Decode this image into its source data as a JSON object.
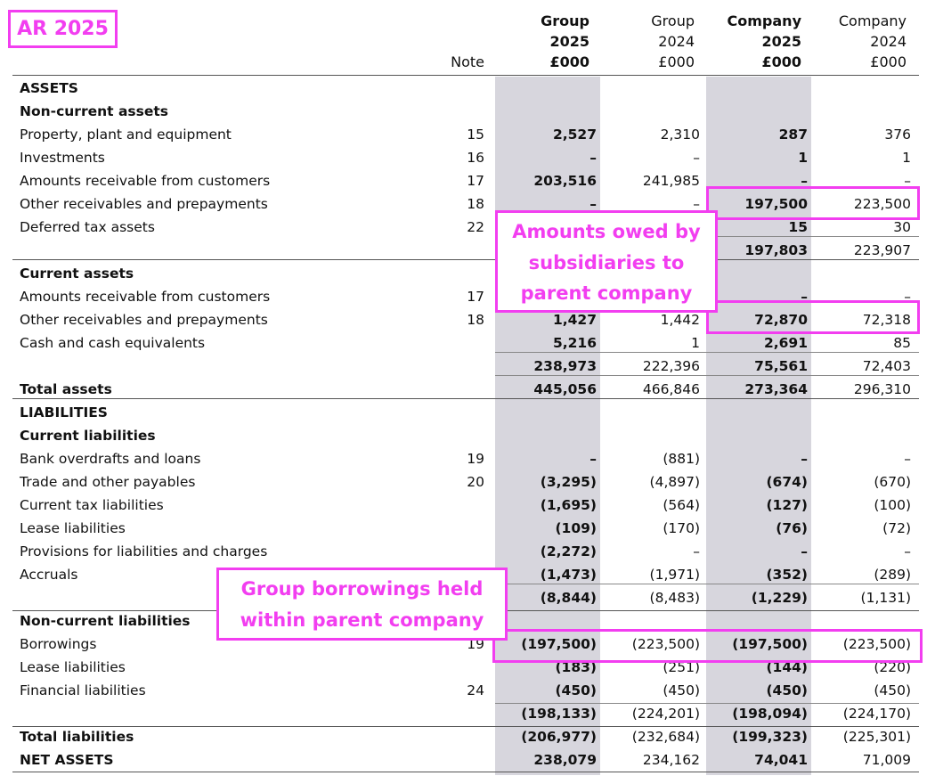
{
  "tag": "AR 2025",
  "columns": {
    "note": "Note",
    "group_2025": [
      "Group",
      "2025",
      "£000"
    ],
    "group_2024": [
      "Group",
      "2024",
      "£000"
    ],
    "company_2025": [
      "Company",
      "2025",
      "£000"
    ],
    "company_2024": [
      "Company",
      "2024",
      "£000"
    ]
  },
  "rows": [
    {
      "label": "ASSETS",
      "bold": true
    },
    {
      "label": "Non-current assets",
      "bold": true
    },
    {
      "label": "Property, plant and equipment",
      "note": "15",
      "v": [
        "2,527",
        "2,310",
        "287",
        "376"
      ]
    },
    {
      "label": "Investments",
      "note": "16",
      "v": [
        "–",
        "–",
        "1",
        "1"
      ]
    },
    {
      "label": "Amounts receivable from customers",
      "note": "17",
      "v": [
        "203,516",
        "241,985",
        "–",
        "–"
      ]
    },
    {
      "label": "Other receivables and prepayments",
      "note": "18",
      "v": [
        "–",
        "–",
        "197,500",
        "223,500"
      ]
    },
    {
      "label": "Deferred tax assets",
      "note": "22",
      "v": [
        "",
        "",
        "15",
        "30"
      ]
    },
    {
      "label": "",
      "v": [
        "",
        "",
        "197,803",
        "223,907"
      ]
    },
    {
      "label": "Current assets",
      "bold": true
    },
    {
      "label": "Amounts receivable from customers",
      "note": "17",
      "v": [
        "",
        "",
        "–",
        "–"
      ]
    },
    {
      "label": "Other receivables and prepayments",
      "note": "18",
      "v": [
        "1,427",
        "1,442",
        "72,870",
        "72,318"
      ]
    },
    {
      "label": "Cash and cash equivalents",
      "v": [
        "5,216",
        "1",
        "2,691",
        "85"
      ]
    },
    {
      "label": "",
      "v": [
        "238,973",
        "222,396",
        "75,561",
        "72,403"
      ]
    },
    {
      "label": "Total assets",
      "bold": true,
      "v": [
        "445,056",
        "466,846",
        "273,364",
        "296,310"
      ]
    },
    {
      "label": "LIABILITIES",
      "bold": true
    },
    {
      "label": "Current liabilities",
      "bold": true
    },
    {
      "label": "Bank overdrafts and loans",
      "note": "19",
      "v": [
        "–",
        "(881)",
        "–",
        "–"
      ]
    },
    {
      "label": "Trade and other payables",
      "note": "20",
      "v": [
        "(3,295)",
        "(4,897)",
        "(674)",
        "(670)"
      ]
    },
    {
      "label": "Current tax liabilities",
      "v": [
        "(1,695)",
        "(564)",
        "(127)",
        "(100)"
      ]
    },
    {
      "label": "Lease liabilities",
      "v": [
        "(109)",
        "(170)",
        "(76)",
        "(72)"
      ]
    },
    {
      "label": "Provisions for liabilities and charges",
      "v": [
        "(2,272)",
        "–",
        "–",
        "–"
      ]
    },
    {
      "label": "Accruals",
      "v": [
        "(1,473)",
        "(1,971)",
        "(352)",
        "(289)"
      ]
    },
    {
      "label": "",
      "v": [
        "(8,844)",
        "(8,483)",
        "(1,229)",
        "(1,131)"
      ]
    },
    {
      "label": "Non-current liabilities",
      "bold": true
    },
    {
      "label": "Borrowings",
      "note": "19",
      "v": [
        "(197,500)",
        "(223,500)",
        "(197,500)",
        "(223,500)"
      ]
    },
    {
      "label": "Lease liabilities",
      "v": [
        "(183)",
        "(251)",
        "(144)",
        "(220)"
      ]
    },
    {
      "label": "Financial liabilities",
      "note": "24",
      "v": [
        "(450)",
        "(450)",
        "(450)",
        "(450)"
      ]
    },
    {
      "label": "",
      "v": [
        "(198,133)",
        "(224,201)",
        "(198,094)",
        "(224,170)"
      ]
    },
    {
      "label": "Total liabilities",
      "bold": true,
      "v": [
        "(206,977)",
        "(232,684)",
        "(199,323)",
        "(225,301)"
      ]
    },
    {
      "label": "NET ASSETS",
      "bold": true,
      "v": [
        "238,079",
        "234,162",
        "74,041",
        "71,009"
      ]
    }
  ],
  "annotations": {
    "owed": [
      "Amounts owed by",
      "subsidiaries to",
      "parent company"
    ],
    "borrowings": [
      "Group borrowings held",
      "within parent company"
    ]
  },
  "colors": {
    "annotation": "#f23ef0",
    "shade": "#d7d6dd"
  }
}
